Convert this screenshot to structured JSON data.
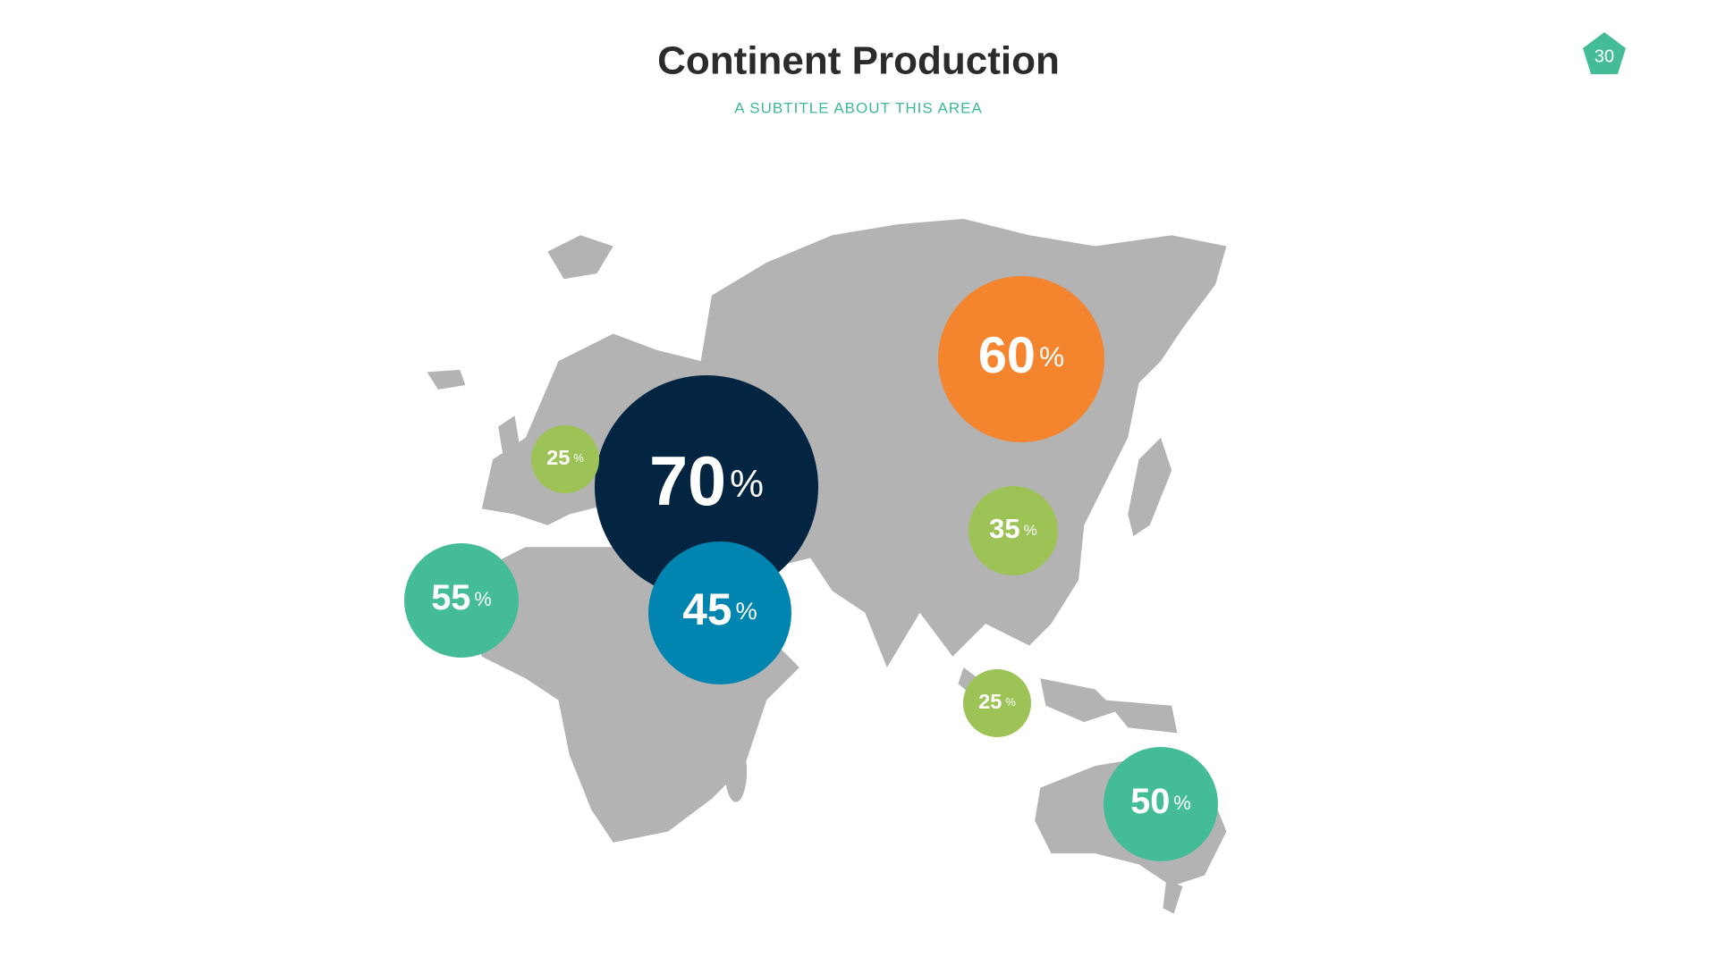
{
  "header": {
    "title": "Continent Production",
    "subtitle": "A SUBTITLE ABOUT THIS AREA",
    "page_number": "30"
  },
  "bubbles": [
    {
      "value": 60,
      "unit": "%",
      "color": "#f5842f"
    },
    {
      "value": 70,
      "unit": "%",
      "color": "#042541"
    },
    {
      "value": 45,
      "unit": "%",
      "color": "#0085b1"
    },
    {
      "value": 55,
      "unit": "%",
      "color": "#45bc98"
    },
    {
      "value": 25,
      "unit": "%",
      "color": "#9dc356"
    },
    {
      "value": 35,
      "unit": "%",
      "color": "#9dc356"
    },
    {
      "value": 25,
      "unit": "%",
      "color": "#9dc356"
    },
    {
      "value": 50,
      "unit": "%",
      "color": "#45bc98"
    }
  ]
}
